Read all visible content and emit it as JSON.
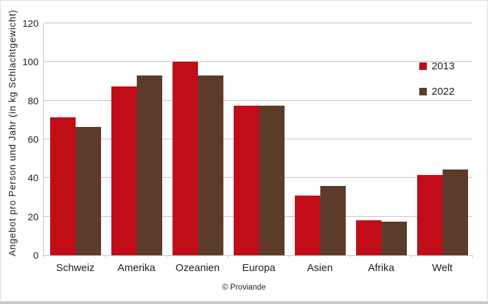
{
  "chart_data": {
    "type": "bar",
    "title": "",
    "xlabel": "",
    "ylabel": "Angebot pro Person und Jahr (in kg Schlachtgewicht)",
    "ylim": [
      0,
      120
    ],
    "ytick_step": 20,
    "grid": true,
    "legend_position": "top-right-inside",
    "categories": [
      "Schweiz",
      "Amerika",
      "Ozeanien",
      "Europa",
      "Asien",
      "Afrika",
      "Welt"
    ],
    "series": [
      {
        "name": "2013",
        "color": "#c00d18",
        "values": [
          71.5,
          87.5,
          100,
          77.5,
          31,
          18,
          41.5
        ]
      },
      {
        "name": "2022",
        "color": "#5c3b2b",
        "values": [
          66.5,
          93,
          93,
          77.5,
          36,
          17.5,
          44.5
        ]
      }
    ]
  },
  "footer": {
    "credit": "© Proviande"
  },
  "colors": {
    "series_2013": "#c00d18",
    "series_2022": "#5c3b2b",
    "gridline": "#c6c6c6",
    "text": "#1d1d1b",
    "background": "#ffffff"
  }
}
